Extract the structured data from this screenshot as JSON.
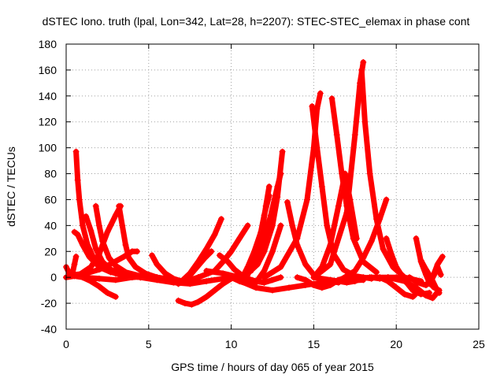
{
  "chart_data": {
    "type": "scatter",
    "title": "dSTEC Iono. truth (lpal, Lon=342, Lat=28, h=2207): STEC-STEC_elemax in phase cont",
    "xlabel": "GPS time / hours of day 065 of year 2015",
    "ylabel": "dSTEC  / TECUs",
    "xlim": [
      0,
      25
    ],
    "ylim": [
      -40,
      180
    ],
    "xticks": [
      0,
      5,
      10,
      15,
      20,
      25
    ],
    "yticks": [
      -40,
      -20,
      0,
      20,
      40,
      60,
      80,
      100,
      120,
      140,
      160,
      180
    ],
    "grid": true,
    "marker": "plus",
    "color": "#ff0000",
    "series": [
      {
        "x": [
          0.0,
          0.2,
          0.4,
          0.5,
          0.6
        ],
        "y": [
          8,
          3,
          4,
          10,
          16
        ]
      },
      {
        "x": [
          0.0,
          0.5,
          1.0,
          1.5,
          2.0,
          2.5,
          3.0
        ],
        "y": [
          0,
          1,
          0,
          -3,
          -7,
          -12,
          -15
        ]
      },
      {
        "x": [
          0.6,
          0.7,
          0.8,
          1.0,
          1.3,
          1.7,
          2.2,
          3.0,
          3.8,
          4.5,
          5.0
        ],
        "y": [
          97,
          75,
          60,
          40,
          25,
          14,
          7,
          3,
          1,
          0,
          0
        ]
      },
      {
        "x": [
          0.5,
          0.7,
          1.0,
          1.4,
          2.0,
          2.7,
          3.5,
          4.5,
          5.5
        ],
        "y": [
          35,
          33,
          25,
          16,
          8,
          4,
          2,
          0,
          0
        ]
      },
      {
        "x": [
          0.0,
          0.8,
          1.5,
          2.0,
          2.5,
          3.0,
          3.3
        ],
        "y": [
          0,
          2,
          8,
          18,
          35,
          48,
          55
        ]
      },
      {
        "x": [
          1.2,
          1.5,
          1.8,
          2.2,
          2.7,
          3.5,
          4.5
        ],
        "y": [
          47,
          36,
          22,
          12,
          6,
          2,
          0
        ]
      },
      {
        "x": [
          1.8,
          2.0,
          2.2,
          2.6,
          3.0,
          3.6,
          4.5,
          5.5,
          6.5
        ],
        "y": [
          55,
          40,
          28,
          15,
          9,
          4,
          1,
          -1,
          -2
        ]
      },
      {
        "x": [
          0.5,
          1.2,
          2.0,
          2.8,
          3.5,
          4.0,
          4.3
        ],
        "y": [
          2,
          3,
          6,
          11,
          16,
          20,
          20
        ]
      },
      {
        "x": [
          3.2,
          3.4,
          3.6,
          3.8,
          4.2,
          4.8,
          5.5,
          6.5
        ],
        "y": [
          55,
          40,
          25,
          15,
          8,
          3,
          0,
          -2
        ]
      },
      {
        "x": [
          1.0,
          2.0,
          3.0,
          4.0,
          5.0,
          6.0,
          7.0
        ],
        "y": [
          0,
          -1,
          -2,
          0,
          1,
          -1,
          -3
        ]
      },
      {
        "x": [
          5.2,
          5.5,
          6.0,
          6.5,
          7.0,
          7.5,
          8.0
        ],
        "y": [
          17,
          10,
          3,
          -1,
          -3,
          -2,
          0
        ]
      },
      {
        "x": [
          3.5,
          4.5,
          5.5,
          6.5,
          7.5,
          8.5,
          9.5,
          10.5
        ],
        "y": [
          2,
          0,
          -2,
          -4,
          -5,
          -3,
          -1,
          0
        ]
      },
      {
        "x": [
          6.8,
          7.2,
          7.6,
          8.0,
          8.5,
          9.0,
          9.5,
          10.0,
          11.0
        ],
        "y": [
          -18,
          -20,
          -21,
          -19,
          -15,
          -10,
          -5,
          -1,
          2
        ]
      },
      {
        "x": [
          6.8,
          7.2,
          7.6,
          8.0,
          8.4,
          8.8
        ],
        "y": [
          -5,
          -2,
          3,
          9,
          15,
          20
        ]
      },
      {
        "x": [
          7.0,
          7.5,
          8.0,
          8.5,
          9.0,
          9.4
        ],
        "y": [
          -3,
          3,
          12,
          22,
          33,
          45
        ]
      },
      {
        "x": [
          8.0,
          9.0,
          9.5,
          10.0,
          10.5,
          11.0
        ],
        "y": [
          0,
          5,
          12,
          20,
          30,
          40
        ]
      },
      {
        "x": [
          9.3,
          9.8,
          10.2,
          10.6,
          11.0,
          11.5,
          12.0
        ],
        "y": [
          17,
          12,
          6,
          2,
          -1,
          -3,
          -4
        ]
      },
      {
        "x": [
          8.5,
          9.5,
          10.5,
          11.5,
          12.0,
          12.5,
          13.0
        ],
        "y": [
          5,
          3,
          0,
          -3,
          -4,
          -2,
          0
        ]
      },
      {
        "x": [
          10.0,
          10.5,
          11.0,
          11.5,
          12.0,
          12.5,
          13.0
        ],
        "y": [
          0,
          -3,
          -5,
          -4,
          5,
          20,
          40
        ]
      },
      {
        "x": [
          10.5,
          11.0,
          11.5,
          12.0,
          12.4,
          12.8,
          13.0
        ],
        "y": [
          0,
          5,
          15,
          30,
          48,
          70,
          80
        ]
      },
      {
        "x": [
          10.6,
          11.0,
          11.4,
          11.8,
          12.0,
          12.3
        ],
        "y": [
          -2,
          8,
          20,
          35,
          48,
          63
        ]
      },
      {
        "x": [
          11.0,
          11.6,
          12.0,
          12.5,
          12.8,
          13.1
        ],
        "y": [
          3,
          10,
          20,
          40,
          62,
          97
        ]
      },
      {
        "x": [
          11.2,
          11.6,
          11.9,
          12.1,
          12.3
        ],
        "y": [
          5,
          20,
          38,
          55,
          70
        ]
      },
      {
        "x": [
          10.0,
          11.5,
          12.5,
          13.5,
          14.5,
          15.5,
          16.5,
          18.0
        ],
        "y": [
          0,
          -8,
          -10,
          -8,
          -6,
          -4,
          -3,
          -2
        ]
      },
      {
        "x": [
          13.4,
          13.7,
          14.0,
          14.5,
          15.0,
          15.5,
          16.0,
          16.5
        ],
        "y": [
          58,
          40,
          25,
          10,
          2,
          -2,
          -3,
          -4
        ]
      },
      {
        "x": [
          12.0,
          13.0,
          14.0,
          14.6,
          15.0,
          15.2,
          15.4
        ],
        "y": [
          0,
          8,
          30,
          60,
          100,
          130,
          142
        ]
      },
      {
        "x": [
          14.9,
          15.2,
          15.5,
          15.8,
          16.2,
          16.8,
          17.5,
          18.5
        ],
        "y": [
          132,
          100,
          70,
          40,
          18,
          6,
          1,
          -1
        ]
      },
      {
        "x": [
          14.0,
          14.5,
          15.0,
          15.5,
          16.0,
          16.5,
          17.0
        ],
        "y": [
          0,
          -2,
          -6,
          -8,
          -6,
          -2,
          0
        ]
      },
      {
        "x": [
          15.0,
          15.5,
          16.0,
          16.5,
          16.9,
          17.2,
          17.6
        ],
        "y": [
          0,
          8,
          25,
          55,
          80,
          60,
          30
        ]
      },
      {
        "x": [
          16.1,
          16.4,
          16.7,
          17.0,
          17.4,
          18.0,
          18.8
        ],
        "y": [
          138,
          110,
          80,
          55,
          30,
          12,
          4
        ]
      },
      {
        "x": [
          15.0,
          16.0,
          16.5,
          17.0,
          17.5,
          18.0
        ],
        "y": [
          0,
          -2,
          -3,
          -4,
          -3,
          0
        ]
      },
      {
        "x": [
          15.0,
          16.0,
          17.0,
          17.5,
          17.8,
          18.0
        ],
        "y": [
          0,
          10,
          50,
          110,
          150,
          166
        ]
      },
      {
        "x": [
          17.9,
          18.1,
          18.4,
          18.8,
          19.2,
          19.8,
          20.5,
          21.5
        ],
        "y": [
          160,
          120,
          80,
          45,
          22,
          8,
          0,
          -3
        ]
      },
      {
        "x": [
          16.5,
          17.5,
          18.0,
          18.5,
          19.0,
          19.4
        ],
        "y": [
          -3,
          5,
          15,
          28,
          45,
          60
        ]
      },
      {
        "x": [
          17.0,
          17.8,
          18.4,
          19.0,
          19.5,
          20.0,
          20.6
        ],
        "y": [
          0,
          -1,
          0,
          -1,
          0,
          0,
          -2
        ]
      },
      {
        "x": [
          19.4,
          19.7,
          20.0,
          20.5,
          21.0,
          21.5,
          22.0
        ],
        "y": [
          30,
          18,
          8,
          -2,
          -10,
          -13,
          -12
        ]
      },
      {
        "x": [
          19.0,
          19.5,
          20.0,
          20.5,
          21.0,
          21.4
        ],
        "y": [
          0,
          -3,
          -8,
          -13,
          -15,
          -10
        ]
      },
      {
        "x": [
          18.5,
          19.5,
          20.5,
          21.2,
          21.8,
          22.2,
          22.6
        ],
        "y": [
          0,
          0,
          -3,
          -8,
          -14,
          -16,
          -10
        ]
      },
      {
        "x": [
          21.2,
          21.5,
          21.8,
          22.0,
          22.3
        ],
        "y": [
          30,
          12,
          2,
          -4,
          -8
        ]
      },
      {
        "x": [
          21.5,
          21.8,
          22.1,
          22.4,
          22.6
        ],
        "y": [
          13,
          6,
          0,
          -8,
          -12
        ]
      },
      {
        "x": [
          20.8,
          21.3,
          21.8,
          22.2,
          22.5,
          22.8
        ],
        "y": [
          0,
          -4,
          -6,
          0,
          10,
          16
        ]
      },
      {
        "x": [
          22.0,
          22.3,
          22.5,
          22.7
        ],
        "y": [
          -5,
          2,
          8,
          2
        ]
      }
    ]
  }
}
